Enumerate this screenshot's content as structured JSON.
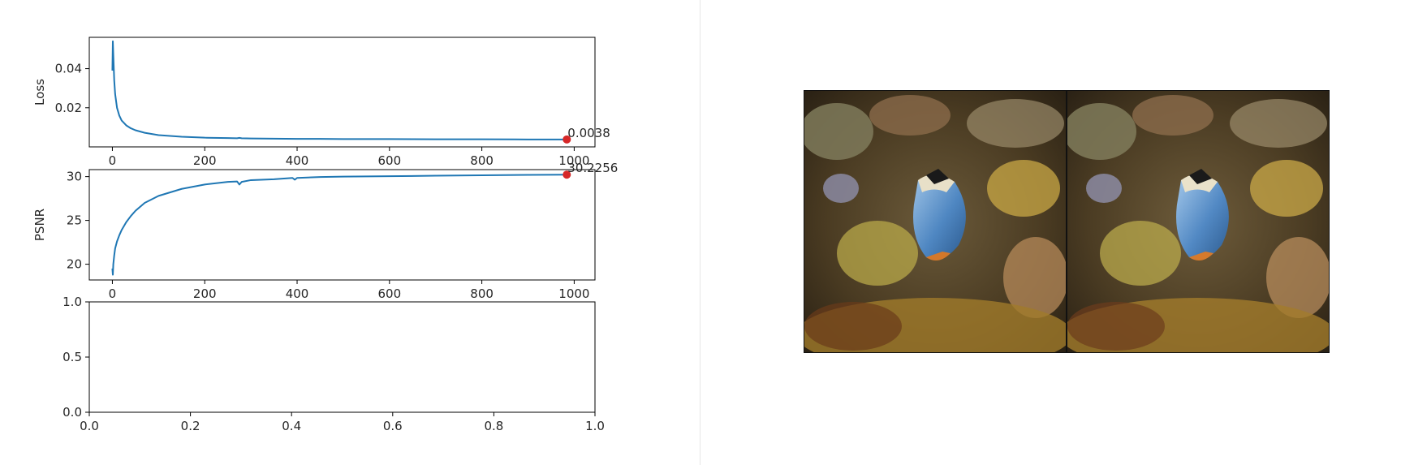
{
  "chart_data": [
    {
      "type": "line",
      "ylabel": "Loss",
      "xlabel": "",
      "xlim": [
        -50,
        1045
      ],
      "ylim": [
        0.0,
        0.056
      ],
      "xticks": [
        0,
        200,
        400,
        600,
        800,
        1000
      ],
      "yticks": [
        0.02,
        0.04
      ],
      "ytick_labels": [
        "0.02",
        "0.04"
      ],
      "grid": false,
      "series": [
        {
          "color": "#1f77b4",
          "x": [
            0,
            1,
            2,
            4,
            6,
            10,
            15,
            20,
            30,
            40,
            50,
            70,
            100,
            150,
            200,
            250,
            270,
            275,
            280,
            300,
            350,
            400,
            450,
            500,
            600,
            700,
            800,
            900,
            984
          ],
          "y": [
            0.039,
            0.054,
            0.047,
            0.034,
            0.027,
            0.02,
            0.016,
            0.0135,
            0.011,
            0.0095,
            0.0085,
            0.0072,
            0.006,
            0.0052,
            0.0047,
            0.0045,
            0.0044,
            0.0046,
            0.0044,
            0.0043,
            0.0042,
            0.0041,
            0.0041,
            0.004,
            0.004,
            0.0039,
            0.0039,
            0.0038,
            0.0038
          ]
        }
      ],
      "marker": {
        "x": 984,
        "y": 0.0038,
        "color": "#d62728",
        "label": "0.0038"
      }
    },
    {
      "type": "line",
      "ylabel": "PSNR",
      "xlabel": "",
      "xlim": [
        -50,
        1045
      ],
      "ylim": [
        18.2,
        30.8
      ],
      "xticks": [
        0,
        200,
        400,
        600,
        800,
        1000
      ],
      "yticks": [
        20,
        25,
        30
      ],
      "ytick_labels": [
        "20",
        "25",
        "30"
      ],
      "grid": false,
      "series": [
        {
          "color": "#1f77b4",
          "x": [
            0,
            1,
            2,
            4,
            6,
            10,
            15,
            20,
            30,
            40,
            50,
            70,
            100,
            150,
            200,
            250,
            270,
            275,
            280,
            300,
            350,
            390,
            395,
            400,
            450,
            500,
            600,
            700,
            800,
            900,
            984
          ],
          "y": [
            19.5,
            18.8,
            20.0,
            21.0,
            21.8,
            22.6,
            23.3,
            23.9,
            24.8,
            25.5,
            26.1,
            27.0,
            27.8,
            28.6,
            29.1,
            29.4,
            29.45,
            29.1,
            29.4,
            29.6,
            29.7,
            29.85,
            29.65,
            29.85,
            29.95,
            30.0,
            30.05,
            30.1,
            30.15,
            30.2,
            30.2256
          ]
        }
      ],
      "marker": {
        "x": 984,
        "y": 30.2256,
        "color": "#d62728",
        "label": "30.2256"
      }
    },
    {
      "type": "line",
      "ylabel": "",
      "xlabel": "",
      "xlim": [
        0.0,
        1.0
      ],
      "ylim": [
        0.0,
        1.0
      ],
      "xticks": [
        0.0,
        0.2,
        0.4,
        0.6,
        0.8,
        1.0
      ],
      "xtick_labels": [
        "0.0",
        "0.2",
        "0.4",
        "0.6",
        "0.8",
        "1.0"
      ],
      "yticks": [
        0.0,
        0.5,
        1.0
      ],
      "ytick_labels": [
        "0.0",
        "0.5",
        "1.0"
      ],
      "grid": false,
      "series": []
    }
  ],
  "images": [
    {
      "name": "reconstruction-image",
      "description_icon": "coral-reef-fish-photo"
    },
    {
      "name": "target-image",
      "description_icon": "coral-reef-fish-photo"
    }
  ]
}
